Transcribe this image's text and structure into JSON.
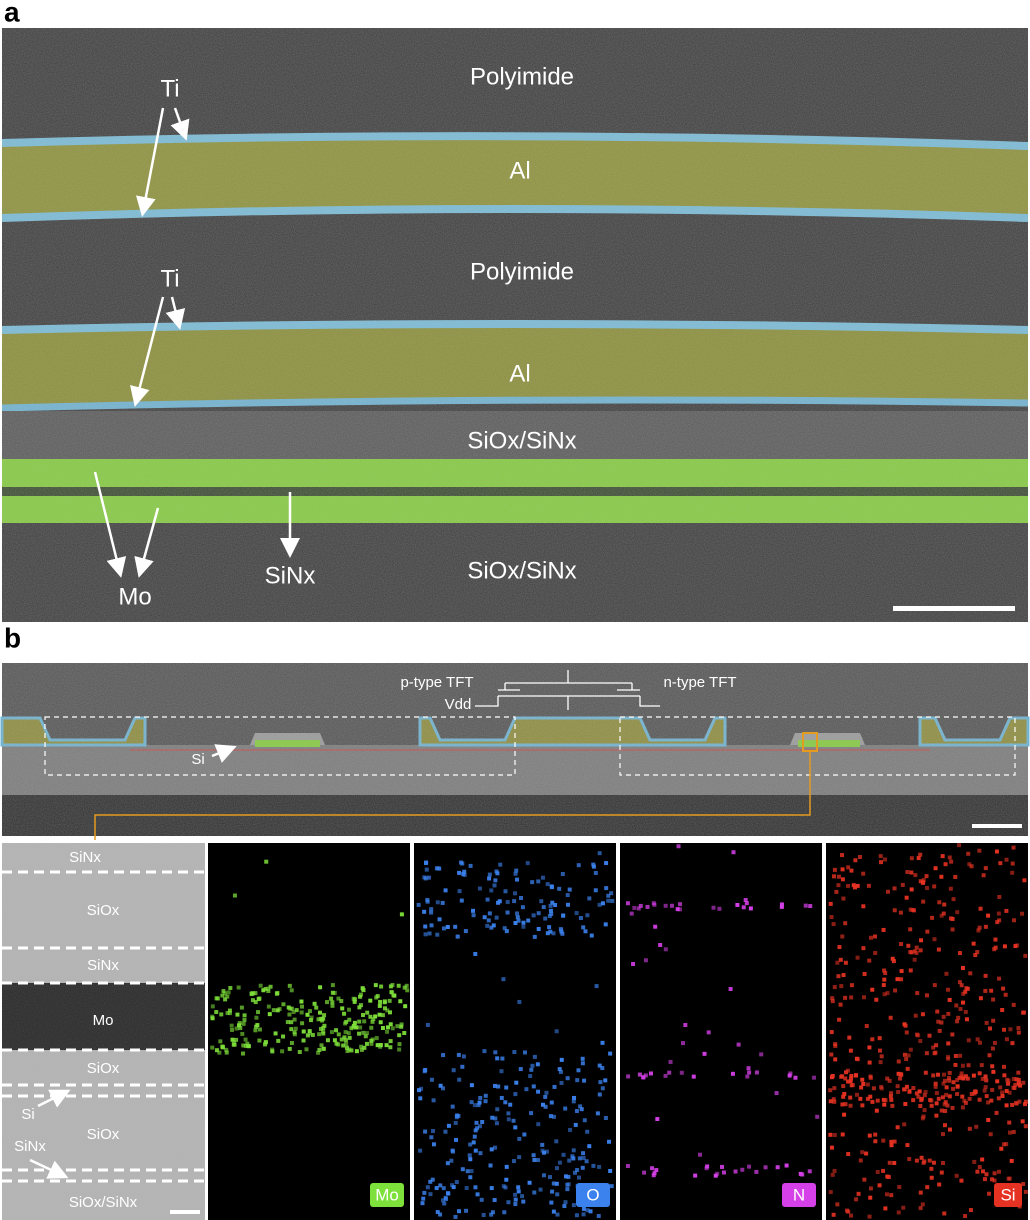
{
  "figure": {
    "panel_a": {
      "label": "a",
      "texts": [
        "Polyimide",
        "Ti",
        "Al",
        "Polyimide",
        "Ti",
        "Al",
        "SiOx/SiNx",
        "Mo",
        "SiNx",
        "SiOx/SiNx"
      ]
    },
    "panel_b": {
      "label": "b",
      "overview_texts": [
        "p-type TFT",
        "n-type TFT",
        "Vdd",
        "Si"
      ],
      "stem_texts": [
        "SiNx",
        "SiOx",
        "SiNx",
        "Mo",
        "SiOx",
        "Si",
        "SiOx",
        "SiNx",
        "SiOx/SiNx"
      ],
      "map_labels": [
        "Mo",
        "O",
        "N",
        "Si"
      ]
    }
  }
}
